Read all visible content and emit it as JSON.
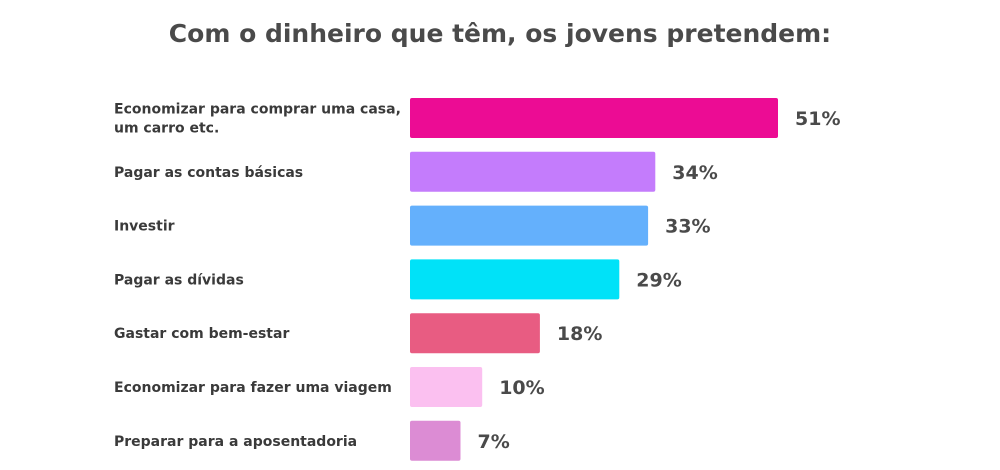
{
  "chart_data": {
    "type": "bar",
    "orientation": "horizontal",
    "title": "Com o dinheiro que têm, os jovens pretendem:",
    "xlabel": "",
    "ylabel": "",
    "grid": false,
    "legend": "none",
    "xlim": [
      0,
      51
    ],
    "categories": [
      [
        "Economizar para comprar uma casa,",
        "um carro etc."
      ],
      [
        "Pagar as contas básicas"
      ],
      [
        "Investir"
      ],
      [
        "Pagar as dívidas"
      ],
      [
        "Gastar com bem-estar"
      ],
      [
        "Economizar para fazer uma viagem"
      ],
      [
        "Preparar para a aposentadoria"
      ]
    ],
    "values": [
      51,
      34,
      33,
      29,
      18,
      10,
      7
    ],
    "value_labels": [
      "51%",
      "34%",
      "33%",
      "29%",
      "18%",
      "10%",
      "7%"
    ],
    "colors": [
      "#ec0c94",
      "#c47cfc",
      "#64b0fc",
      "#00e2f8",
      "#e85c82",
      "#fbc0f0",
      "#dc8cd4"
    ]
  }
}
